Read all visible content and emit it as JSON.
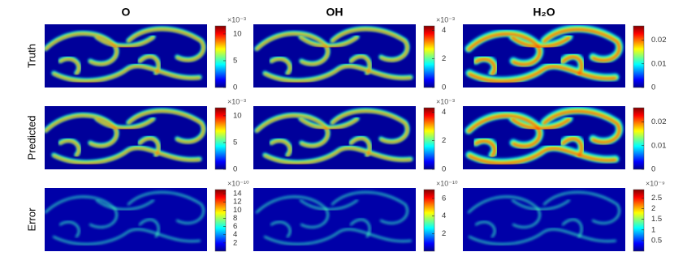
{
  "columns": [
    "O",
    "OH",
    "H₂O"
  ],
  "rows": [
    {
      "label": "Truth",
      "panels": [
        {
          "exponent": "×10⁻³",
          "lim": [
            0,
            11.5
          ],
          "ticks": [
            0,
            5,
            10
          ]
        },
        {
          "exponent": "×10⁻³",
          "lim": [
            0,
            4.3
          ],
          "ticks": [
            0,
            2,
            4
          ]
        },
        {
          "lim": [
            0,
            0.026
          ],
          "ticks": [
            0,
            0.01,
            0.02
          ]
        }
      ]
    },
    {
      "label": "Predicted",
      "panels": [
        {
          "exponent": "×10⁻³",
          "lim": [
            0,
            11.5
          ],
          "ticks": [
            0,
            5,
            10
          ]
        },
        {
          "exponent": "×10⁻³",
          "lim": [
            0,
            4.3
          ],
          "ticks": [
            0,
            2,
            4
          ]
        },
        {
          "lim": [
            0,
            0.026
          ],
          "ticks": [
            0,
            0.01,
            0.02
          ]
        }
      ]
    },
    {
      "label": "Error",
      "panels": [
        {
          "exponent": "×10⁻¹⁰",
          "lim": [
            0,
            15
          ],
          "ticks": [
            2,
            4,
            6,
            8,
            10,
            12,
            14
          ]
        },
        {
          "exponent": "×10⁻¹⁰",
          "lim": [
            0,
            7
          ],
          "ticks": [
            2,
            4,
            6
          ]
        },
        {
          "exponent": "×10⁻⁹",
          "lim": [
            0,
            2.9
          ],
          "ticks": [
            0.5,
            1,
            1.5,
            2,
            2.5
          ]
        }
      ]
    }
  ]
}
